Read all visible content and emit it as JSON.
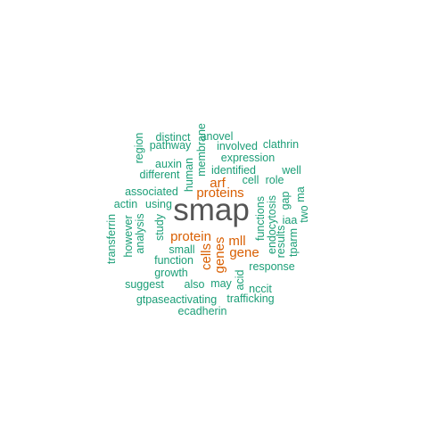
{
  "colors": {
    "background": "#ffffff",
    "primary_term": "#555555",
    "secondary_term": "#d95f02",
    "minor_term": "#1b9e77"
  },
  "words": [
    {
      "text": "smap",
      "color": "primary_term"
    },
    {
      "text": "arf",
      "color": "secondary_term"
    },
    {
      "text": "proteins",
      "color": "secondary_term"
    },
    {
      "text": "protein",
      "color": "secondary_term"
    },
    {
      "text": "mll",
      "color": "secondary_term"
    },
    {
      "text": "cells",
      "color": "secondary_term"
    },
    {
      "text": "genes",
      "color": "secondary_term"
    },
    {
      "text": "gene",
      "color": "secondary_term"
    },
    {
      "text": "distinct",
      "color": "minor_term"
    },
    {
      "text": "anovel",
      "color": "minor_term"
    },
    {
      "text": "membrane",
      "color": "minor_term"
    },
    {
      "text": "region",
      "color": "minor_term"
    },
    {
      "text": "pathway",
      "color": "minor_term"
    },
    {
      "text": "involved",
      "color": "minor_term"
    },
    {
      "text": "clathrin",
      "color": "minor_term"
    },
    {
      "text": "expression",
      "color": "minor_term"
    },
    {
      "text": "auxin",
      "color": "minor_term"
    },
    {
      "text": "human",
      "color": "minor_term"
    },
    {
      "text": "identified",
      "color": "minor_term"
    },
    {
      "text": "well",
      "color": "minor_term"
    },
    {
      "text": "different",
      "color": "minor_term"
    },
    {
      "text": "cell",
      "color": "minor_term"
    },
    {
      "text": "role",
      "color": "minor_term"
    },
    {
      "text": "associated",
      "color": "minor_term"
    },
    {
      "text": "ma",
      "color": "minor_term"
    },
    {
      "text": "gap",
      "color": "minor_term"
    },
    {
      "text": "actin",
      "color": "minor_term"
    },
    {
      "text": "using",
      "color": "minor_term"
    },
    {
      "text": "functions",
      "color": "minor_term"
    },
    {
      "text": "endocytosis",
      "color": "minor_term"
    },
    {
      "text": "two",
      "color": "minor_term"
    },
    {
      "text": "iaa",
      "color": "minor_term"
    },
    {
      "text": "analysis",
      "color": "minor_term"
    },
    {
      "text": "however",
      "color": "minor_term"
    },
    {
      "text": "study",
      "color": "minor_term"
    },
    {
      "text": "results",
      "color": "minor_term"
    },
    {
      "text": "tparm",
      "color": "minor_term"
    },
    {
      "text": "transferrin",
      "color": "minor_term"
    },
    {
      "text": "small",
      "color": "minor_term"
    },
    {
      "text": "function",
      "color": "minor_term"
    },
    {
      "text": "response",
      "color": "minor_term"
    },
    {
      "text": "growth",
      "color": "minor_term"
    },
    {
      "text": "acid",
      "color": "minor_term"
    },
    {
      "text": "suggest",
      "color": "minor_term"
    },
    {
      "text": "also",
      "color": "minor_term"
    },
    {
      "text": "may",
      "color": "minor_term"
    },
    {
      "text": "nccit",
      "color": "minor_term"
    },
    {
      "text": "gtpaseactivating",
      "color": "minor_term"
    },
    {
      "text": "trafficking",
      "color": "minor_term"
    },
    {
      "text": "ecadherin",
      "color": "minor_term"
    }
  ]
}
